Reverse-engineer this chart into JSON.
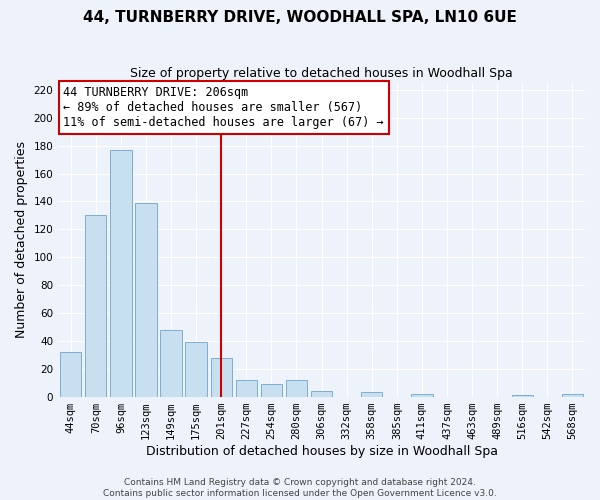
{
  "title": "44, TURNBERRY DRIVE, WOODHALL SPA, LN10 6UE",
  "subtitle": "Size of property relative to detached houses in Woodhall Spa",
  "xlabel": "Distribution of detached houses by size in Woodhall Spa",
  "ylabel": "Number of detached properties",
  "bar_labels": [
    "44sqm",
    "70sqm",
    "96sqm",
    "123sqm",
    "149sqm",
    "175sqm",
    "201sqm",
    "227sqm",
    "254sqm",
    "280sqm",
    "306sqm",
    "332sqm",
    "358sqm",
    "385sqm",
    "411sqm",
    "437sqm",
    "463sqm",
    "489sqm",
    "516sqm",
    "542sqm",
    "568sqm"
  ],
  "bar_values": [
    32,
    130,
    177,
    139,
    48,
    39,
    28,
    12,
    9,
    12,
    4,
    0,
    3,
    0,
    2,
    0,
    0,
    0,
    1,
    0,
    2
  ],
  "bar_color": "#c8dff0",
  "bar_edge_color": "#7bafd4",
  "vline_index": 6,
  "vline_color": "#cc0000",
  "annotation_title": "44 TURNBERRY DRIVE: 206sqm",
  "annotation_line1": "← 89% of detached houses are smaller (567)",
  "annotation_line2": "11% of semi-detached houses are larger (67) →",
  "annotation_box_facecolor": "#ffffff",
  "annotation_box_edgecolor": "#cc0000",
  "ylim": [
    0,
    225
  ],
  "yticks": [
    0,
    20,
    40,
    60,
    80,
    100,
    120,
    140,
    160,
    180,
    200,
    220
  ],
  "footer_line1": "Contains HM Land Registry data © Crown copyright and database right 2024.",
  "footer_line2": "Contains public sector information licensed under the Open Government Licence v3.0.",
  "bg_color": "#eef2fa",
  "plot_bg_color": "#eef2fa",
  "grid_color": "#ffffff",
  "title_fontsize": 11,
  "subtitle_fontsize": 9,
  "ylabel_fontsize": 9,
  "xlabel_fontsize": 9,
  "tick_fontsize": 7.5,
  "annot_fontsize": 8.5,
  "footer_fontsize": 6.5
}
